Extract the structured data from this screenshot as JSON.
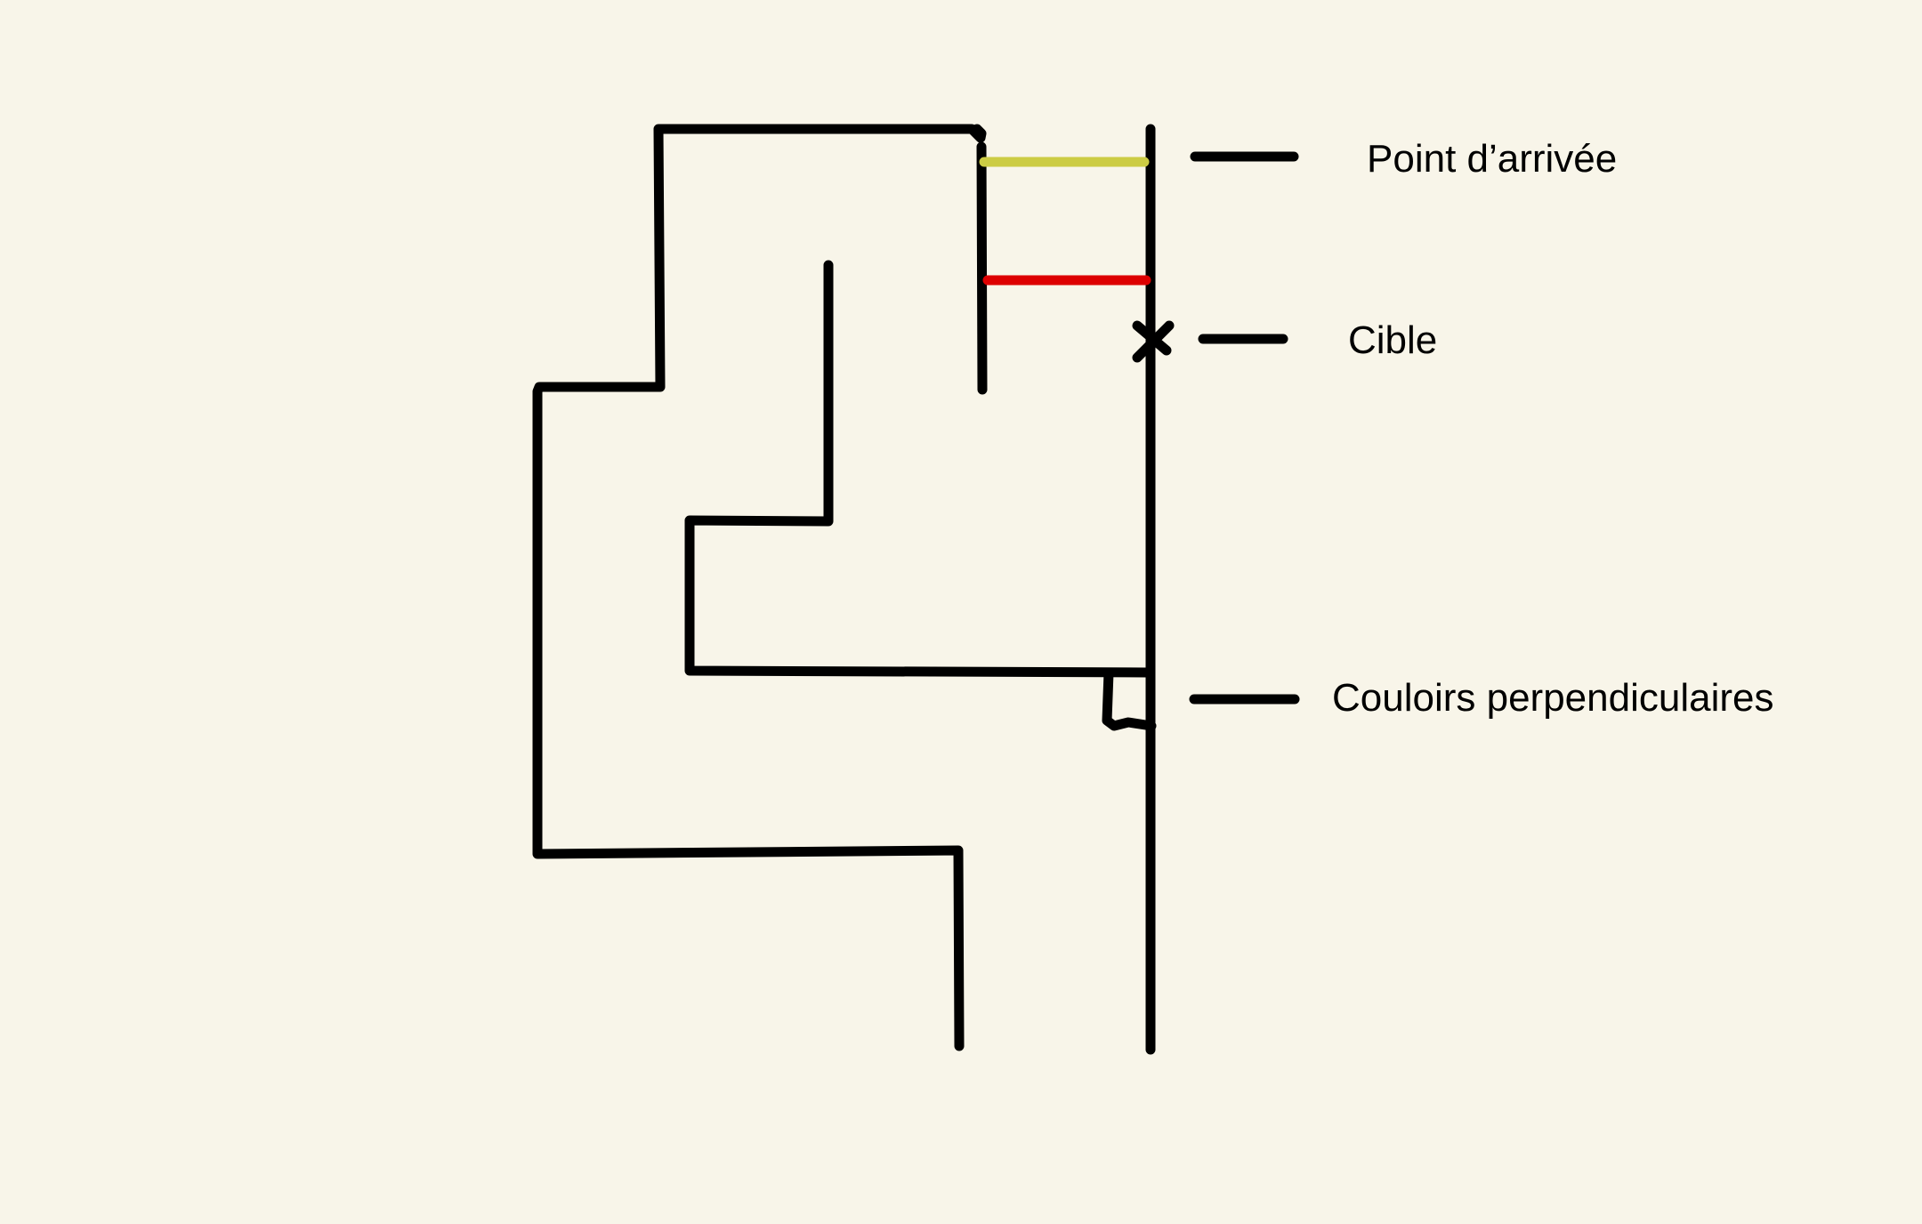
{
  "labels": {
    "arrival_point": "Point d’arrivée",
    "target": "Cible",
    "perpendicular_corridors": "Couloirs perpendiculaires"
  },
  "colors": {
    "background": "#f8f5e9",
    "ink": "#000000",
    "arrival_line": "#cccc44",
    "red_line": "#dd0000"
  }
}
